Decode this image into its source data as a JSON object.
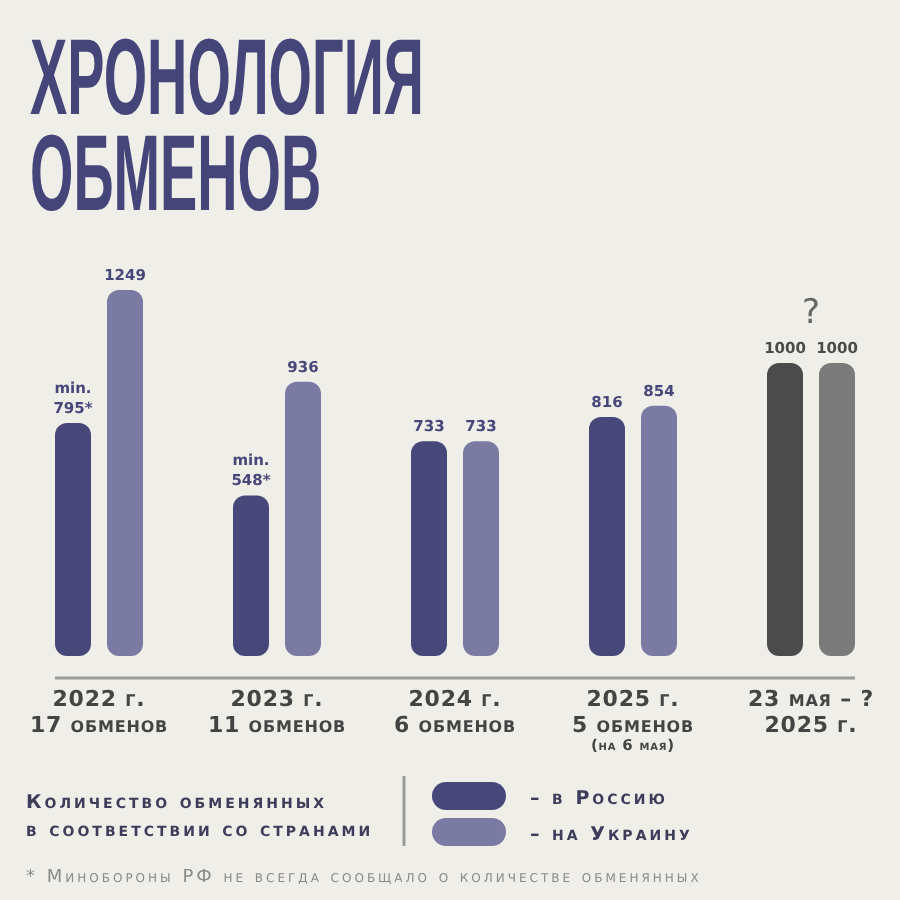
{
  "chart_data": {
    "type": "bar",
    "title": "ХРОНОЛОГИЯ ОБМЕНОВ",
    "categories": [
      "2022 г.\n17 обменов",
      "2023 г.\n11 обменов",
      "2024 г.\n6 обменов",
      "2025 г.\n5 обменов\n(на 6 мая)",
      "23 мая – ?\n2025 г."
    ],
    "series": [
      {
        "name": "– в Россию",
        "color": "#47477a",
        "colors": [
          "#47477a",
          "#47477a",
          "#47477a",
          "#47477a",
          "#4b4b4b"
        ],
        "values": [
          795,
          548,
          733,
          816,
          1000
        ],
        "value_labels": [
          "min.\n795*",
          "min.\n548*",
          "733",
          "816",
          "1000"
        ]
      },
      {
        "name": "– на Украину",
        "color": "#7a7aa2",
        "colors": [
          "#7a7aa2",
          "#7a7aa2",
          "#7a7aa2",
          "#7a7aa2",
          "#7b7b7b"
        ],
        "values": [
          1249,
          936,
          733,
          854,
          1000
        ],
        "value_labels": [
          "1249",
          "936",
          "733",
          "854",
          "1000"
        ]
      }
    ],
    "legend": "bottom",
    "legend_title": "Количество обменянных\nв соответствии со странами",
    "annotations": [
      "?",
      "* Минобороны РФ не всегда сообщало о количестве обменянных"
    ]
  }
}
